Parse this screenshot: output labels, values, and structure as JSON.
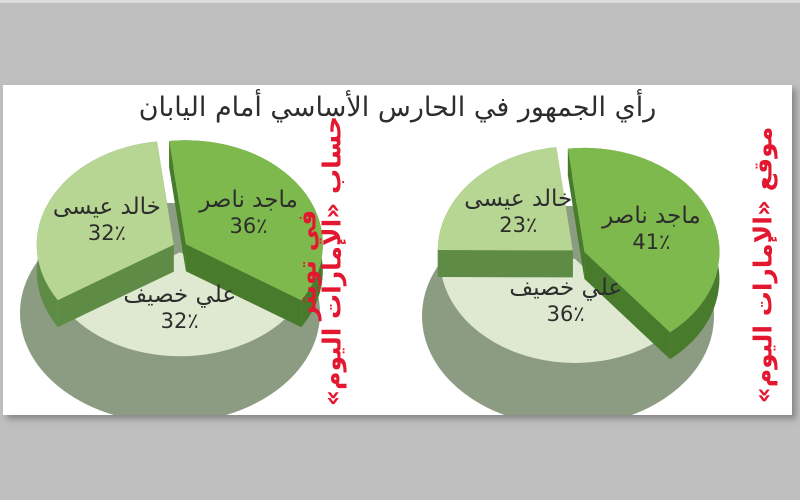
{
  "title": "رأي الجمهور في الحارس الأساسي أمام اليابان",
  "colors": {
    "page_background": "#bfbfbf",
    "panel_background": "#ffffff",
    "title_text": "#2d2d2d",
    "label_text": "#2d2d2d",
    "caption_red": "#e3172f"
  },
  "chart_data": [
    {
      "type": "pie",
      "style": "3d-exploded",
      "caption": {
        "lines": [
          "حساب «الإمارات اليوم»",
          "في تويتر"
        ],
        "color": "#e3172f"
      },
      "legend_position": "labels-on-slices",
      "start_angle_deg": 97,
      "direction": "clockwise",
      "slices": [
        {
          "label": "ماجد ناصر",
          "value_pct": 36,
          "pct_label": "36٪",
          "top_color": "#7eb94d",
          "side_color": "#497b2d"
        },
        {
          "label": "علي خصيف",
          "value_pct": 32,
          "pct_label": "32٪",
          "top_color": "#dfe9d1",
          "side_color": "#8c9c82"
        },
        {
          "label": "خالد عيسى",
          "value_pct": 32,
          "pct_label": "32٪",
          "top_color": "#b7d593",
          "side_color": "#5e8c46"
        }
      ],
      "base_shadow_color": "#8c9c82"
    },
    {
      "type": "pie",
      "style": "3d-exploded",
      "caption": {
        "lines": [
          "موقع «الإمارات اليوم»"
        ],
        "color": "#e3172f"
      },
      "legend_position": "labels-on-slices",
      "start_angle_deg": 97,
      "direction": "clockwise",
      "slices": [
        {
          "label": "ماجد ناصر",
          "value_pct": 41,
          "pct_label": "41٪",
          "top_color": "#7eb94d",
          "side_color": "#497b2d"
        },
        {
          "label": "علي خصيف",
          "value_pct": 36,
          "pct_label": "36٪",
          "top_color": "#dfe9d1",
          "side_color": "#8c9c82"
        },
        {
          "label": "خالد عيسى",
          "value_pct": 23,
          "pct_label": "23٪",
          "top_color": "#b7d593",
          "side_color": "#5e8c46"
        }
      ],
      "base_shadow_color": "#8c9c82"
    }
  ]
}
